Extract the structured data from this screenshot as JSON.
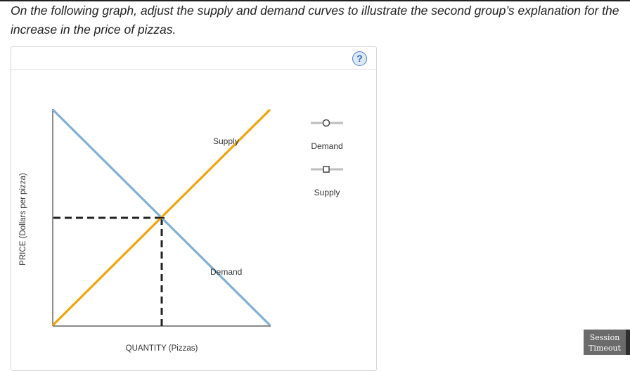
{
  "instructions": {
    "text": "On the following graph, adjust the supply and demand curves to illustrate the second group’s explanation for the increase in the price of pizzas."
  },
  "panel": {
    "help_label": "?"
  },
  "graph": {
    "y_axis_label": "PRICE (Dollars per pizza)",
    "x_axis_label": "QUANTITY (Pizzas)",
    "supply_curve_label": "Supply",
    "demand_curve_label": "Demand",
    "colors": {
      "supply": "#f0a30a",
      "demand": "#7fb0d3",
      "equilibrium_lines": "#222222",
      "axes": "#444444"
    }
  },
  "palette": {
    "items": [
      {
        "label": "Demand",
        "icon": "circle-handle-icon"
      },
      {
        "label": "Supply",
        "icon": "square-handle-icon"
      }
    ]
  },
  "session": {
    "line1": "Session",
    "line2": "Timeout"
  }
}
